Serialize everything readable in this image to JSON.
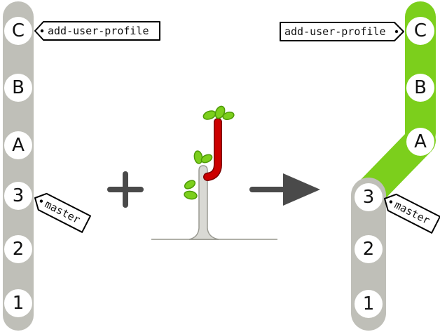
{
  "colors": {
    "track_gray": "#bfbfb8",
    "track_green": "#7ccf1c",
    "commit_fill": "#ffffff",
    "outline": "#000000",
    "arrow": "#4a4a4a",
    "stem_gray": "#d9d9d4",
    "twig_red": "#cc0000",
    "leaf_green": "#7ccf1c",
    "leaf_dark": "#4e9a06",
    "ground": "#b0b0a8"
  },
  "before": {
    "commits": [
      "C",
      "B",
      "A",
      "3",
      "2",
      "1"
    ],
    "tags": {
      "feature": "add-user-profile",
      "master": "master"
    }
  },
  "operators": {
    "plus_icon": "plus-icon",
    "arrow_icon": "right-arrow-icon",
    "graft_icon": "branch-graft-icon"
  },
  "after": {
    "commits_green": [
      "C",
      "B",
      "A"
    ],
    "commits_gray": [
      "3",
      "2",
      "1"
    ],
    "tags": {
      "feature": "add-user-profile",
      "master": "master"
    }
  }
}
